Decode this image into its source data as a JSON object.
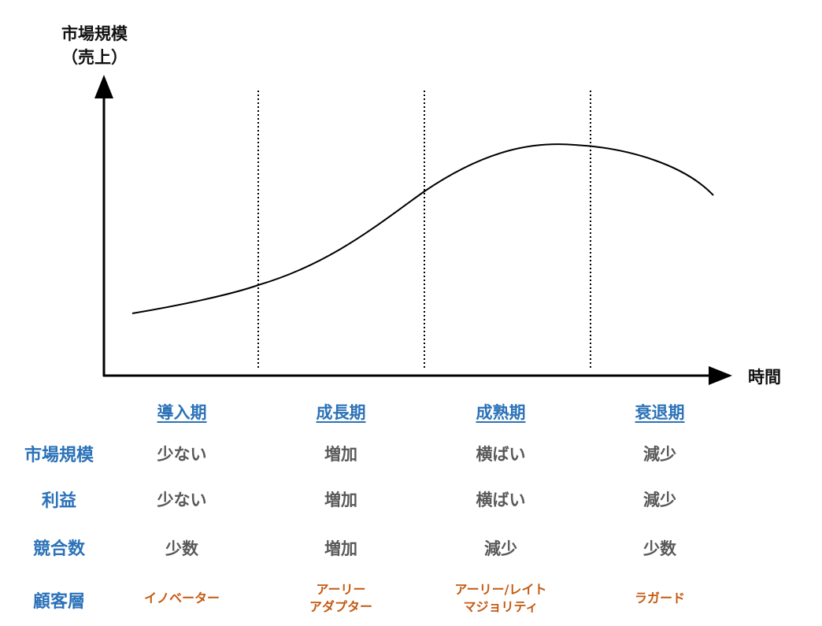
{
  "axes": {
    "y_label_line1": "市場規模",
    "y_label_line2": "（売上）",
    "x_label": "時間"
  },
  "phases": [
    "導入期",
    "成長期",
    "成熟期",
    "衰退期"
  ],
  "rows": [
    {
      "label": "市場規模",
      "values": [
        "少ない",
        "増加",
        "横ばい",
        "減少"
      ]
    },
    {
      "label": "利益",
      "values": [
        "少ない",
        "増加",
        "横ばい",
        "減少"
      ]
    },
    {
      "label": "競合数",
      "values": [
        "少数",
        "増加",
        "減少",
        "少数"
      ]
    }
  ],
  "customer_row": {
    "label": "顧客層",
    "values": [
      "イノベーター",
      "アーリー\nアダプター",
      "アーリー/レイト\nマジョリティ",
      "ラガード"
    ]
  },
  "colors": {
    "heading_blue": "#2b72b8",
    "value_gray": "#595959",
    "customer_orange": "#c55a11"
  }
}
